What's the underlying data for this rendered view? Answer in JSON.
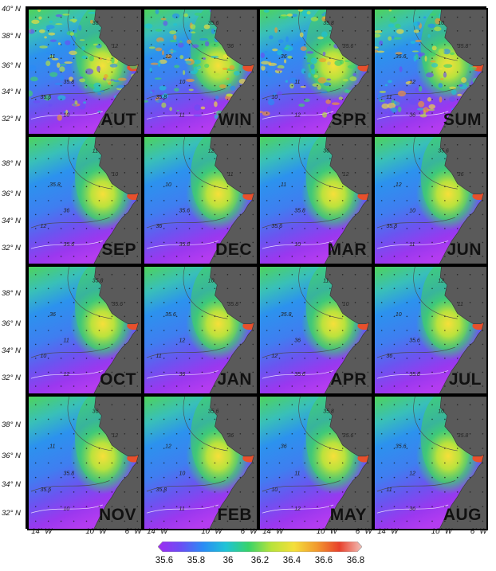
{
  "panels": [
    {
      "label": "AUT",
      "style": "noisy",
      "row": 0,
      "col": 0
    },
    {
      "label": "WIN",
      "style": "noisy",
      "row": 0,
      "col": 1
    },
    {
      "label": "SPR",
      "style": "noisy",
      "row": 0,
      "col": 2
    },
    {
      "label": "SUM",
      "style": "noisy",
      "row": 0,
      "col": 3
    },
    {
      "label": "SEP",
      "style": "smooth",
      "row": 1,
      "col": 0
    },
    {
      "label": "DEC",
      "style": "smooth",
      "row": 1,
      "col": 1
    },
    {
      "label": "MAR",
      "style": "smooth",
      "row": 1,
      "col": 2
    },
    {
      "label": "JUN",
      "style": "smooth",
      "row": 1,
      "col": 3
    },
    {
      "label": "OCT",
      "style": "smooth",
      "row": 2,
      "col": 0
    },
    {
      "label": "JAN",
      "style": "smooth",
      "row": 2,
      "col": 1
    },
    {
      "label": "APR",
      "style": "smooth",
      "row": 2,
      "col": 2
    },
    {
      "label": "JUL",
      "style": "smooth",
      "row": 2,
      "col": 3
    },
    {
      "label": "NOV",
      "style": "smooth",
      "row": 3,
      "col": 0
    },
    {
      "label": "FEB",
      "style": "smooth",
      "row": 3,
      "col": 1
    },
    {
      "label": "MAY",
      "style": "smooth",
      "row": 3,
      "col": 2
    },
    {
      "label": "AUG",
      "style": "smooth",
      "row": 3,
      "col": 3
    }
  ],
  "lat_labels": [
    "40° N",
    "38° N",
    "36° N",
    "34° N",
    "32° N"
  ],
  "lon_labels": [
    "14° W",
    "10° W",
    "6° W"
  ],
  "contour_labels": [
    "35.6",
    "35.8",
    "10",
    "11",
    "12",
    "36"
  ],
  "colorbar": {
    "ticks": [
      "35.6",
      "35.8",
      "36",
      "36.2",
      "36.4",
      "36.6",
      "36.8"
    ],
    "colors": [
      "#a02cf0",
      "#6b4df5",
      "#2a8cf5",
      "#1fc3d6",
      "#37d36a",
      "#b8e33a",
      "#f4df3a",
      "#f29a2e",
      "#e8402c",
      "#f2c0b8"
    ]
  },
  "land_color": "#5a5a5a"
}
